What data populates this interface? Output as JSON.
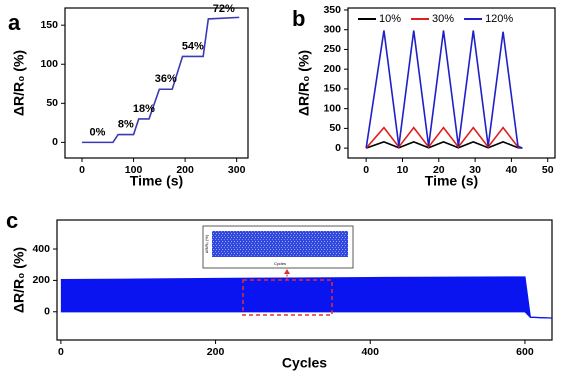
{
  "chart_data": [
    {
      "type": "line",
      "panel_label": "a",
      "xlabel": "Time (s)",
      "ylabel": "ΔR/R₀ (%)",
      "x": [
        0,
        60,
        70,
        100,
        110,
        130,
        150,
        175,
        195,
        235,
        245,
        305
      ],
      "series": [
        {
          "color": "#3a3ab8",
          "values": [
            0,
            0,
            10,
            10,
            30,
            30,
            68,
            68,
            110,
            110,
            158,
            160
          ]
        }
      ],
      "annotations": [
        "0%",
        "8%",
        "18%",
        "36%",
        "54%",
        "72%"
      ],
      "xlim": [
        -33,
        322
      ],
      "ylim": [
        -20,
        172
      ],
      "xticks": [
        0,
        100,
        200,
        300
      ],
      "yticks": [
        0,
        50,
        100,
        150
      ]
    },
    {
      "type": "line",
      "panel_label": "b",
      "xlabel": "Time (s)",
      "ylabel": "ΔR/R₀ (%)",
      "x": [
        0,
        4.9,
        9,
        13.1,
        17.2,
        21.3,
        25.4,
        29.5,
        33.6,
        37.7,
        41.8,
        43
      ],
      "series": [
        {
          "name": "10%",
          "color": "#000000",
          "values": [
            0,
            16,
            1,
            16,
            1,
            16,
            1,
            16,
            1,
            16,
            1,
            0
          ]
        },
        {
          "name": "30%",
          "color": "#e02020",
          "values": [
            0,
            52,
            3,
            52,
            3,
            52,
            3,
            52,
            3,
            52,
            3,
            0
          ]
        },
        {
          "name": "120%",
          "color": "#2020c8",
          "values": [
            0,
            298,
            5,
            298,
            5,
            298,
            5,
            298,
            5,
            295,
            5,
            0
          ]
        }
      ],
      "legend": "top-left",
      "xlim": [
        -5,
        52
      ],
      "ylim": [
        -25,
        355
      ],
      "xticks": [
        0,
        10,
        20,
        30,
        40,
        50
      ],
      "yticks": [
        0,
        50,
        100,
        150,
        200,
        250,
        300,
        350
      ]
    },
    {
      "type": "band",
      "panel_label": "c",
      "xlabel": "Cycles",
      "ylabel": "ΔR/R₀ (%)",
      "x": [
        0,
        100,
        200,
        300,
        400,
        500,
        600,
        607,
        635
      ],
      "upper": [
        205,
        208,
        212,
        215,
        218,
        220,
        222,
        -35,
        -40
      ],
      "lower": [
        0,
        0,
        0,
        0,
        0,
        0,
        0,
        -35,
        -40
      ],
      "color": "#0a14f0",
      "inset": {
        "xlabel": "Cycles",
        "ylabel": "ΔR/R₀ (%)"
      },
      "xlim": [
        -5,
        635
      ],
      "ylim": [
        -180,
        585
      ],
      "xticks": [
        0,
        200,
        400,
        600
      ],
      "yticks": [
        0,
        200,
        400
      ]
    }
  ]
}
